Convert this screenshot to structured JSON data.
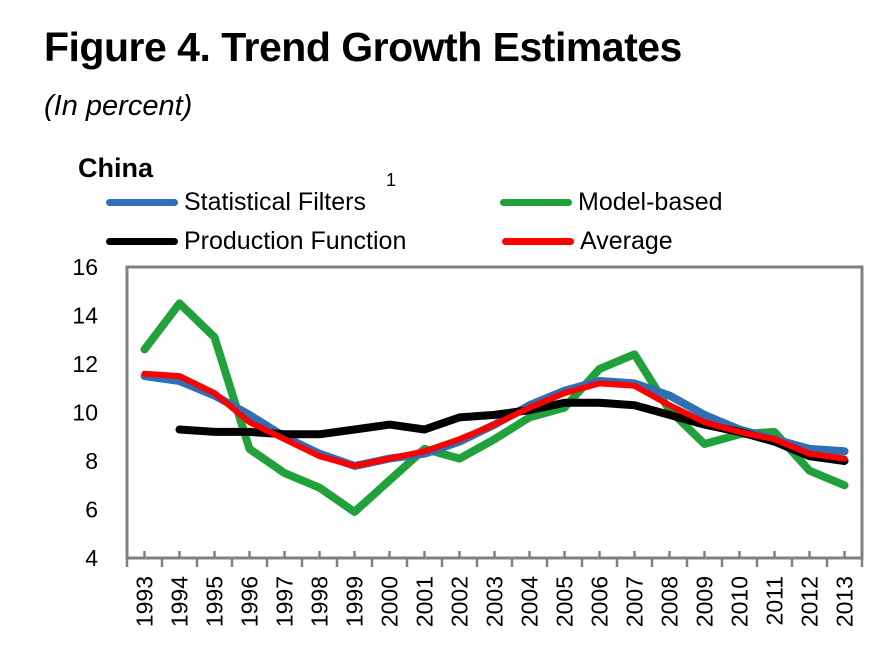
{
  "header": {
    "title": "Figure 4. Trend Growth Estimates",
    "subtitle": "(In percent)"
  },
  "chart_data": {
    "type": "line",
    "title": "China",
    "xlabel": "",
    "ylabel": "",
    "ylim": [
      4,
      16
    ],
    "yticks": [
      4,
      6,
      8,
      10,
      12,
      14,
      16
    ],
    "grid": false,
    "legend_position": "top",
    "x": [
      "1993",
      "1994",
      "1995",
      "1996",
      "1997",
      "1998",
      "1999",
      "2000",
      "2001",
      "2002",
      "2003",
      "2004",
      "2005",
      "2006",
      "2007",
      "2008",
      "2009",
      "2010",
      "2011",
      "2012",
      "2013"
    ],
    "series": [
      {
        "name": "Statistical Filters",
        "footnote": "1",
        "color": "#2e6fb5",
        "values": [
          11.5,
          11.3,
          10.7,
          9.9,
          9.0,
          8.3,
          7.8,
          8.1,
          8.3,
          8.8,
          9.5,
          10.3,
          10.9,
          11.3,
          11.2,
          10.7,
          9.9,
          9.3,
          8.9,
          8.5,
          8.4
        ]
      },
      {
        "name": "Model-based",
        "footnote": "",
        "color": "#1fa23a",
        "values": [
          12.6,
          14.5,
          13.1,
          8.5,
          7.5,
          6.9,
          5.9,
          7.2,
          8.5,
          8.1,
          8.9,
          9.8,
          10.2,
          11.8,
          12.4,
          10.1,
          8.7,
          9.1,
          9.2,
          7.6,
          7.0
        ]
      },
      {
        "name": "Production Function",
        "footnote": "",
        "color": "#000000",
        "values": [
          null,
          9.3,
          9.2,
          9.2,
          9.1,
          9.1,
          9.3,
          9.5,
          9.3,
          9.8,
          9.9,
          10.1,
          10.4,
          10.4,
          10.3,
          9.9,
          9.5,
          9.2,
          8.8,
          8.2,
          8.0
        ]
      },
      {
        "name": "Average",
        "footnote": "",
        "color": "#ff0000",
        "values": [
          11.6,
          11.5,
          10.8,
          9.6,
          8.9,
          8.2,
          7.8,
          8.1,
          8.4,
          8.9,
          9.5,
          10.2,
          10.8,
          11.2,
          11.1,
          10.3,
          9.6,
          9.2,
          8.9,
          8.3,
          8.1
        ]
      }
    ]
  }
}
